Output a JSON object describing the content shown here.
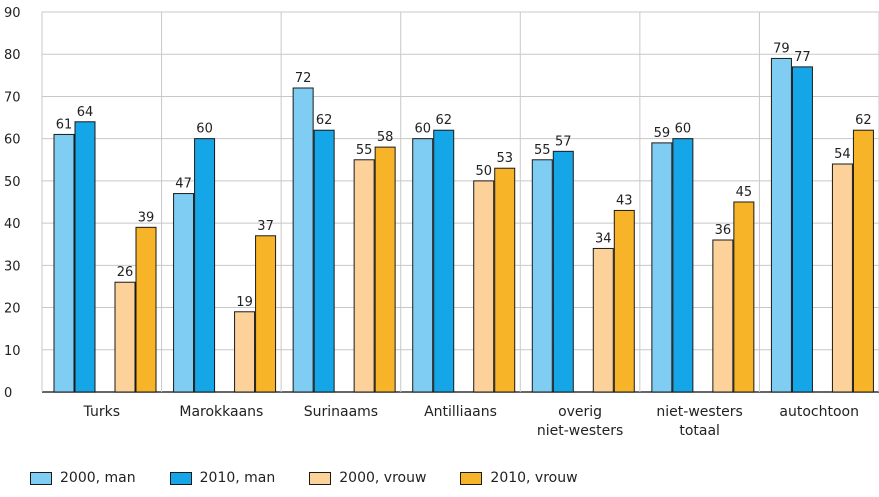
{
  "chart_data": {
    "type": "bar",
    "categories": [
      [
        "Turks"
      ],
      [
        "Marokkaans"
      ],
      [
        "Surinaams"
      ],
      [
        "Antilliaans"
      ],
      [
        "overig",
        "niet-westers"
      ],
      [
        "niet-westers",
        "totaal"
      ],
      [
        "autochtoon"
      ]
    ],
    "series": [
      {
        "name": "2000, man",
        "color": "#7fcdf2",
        "values": [
          61,
          47,
          72,
          60,
          55,
          59,
          79
        ]
      },
      {
        "name": "2010, man",
        "color": "#14a6e6",
        "values": [
          64,
          60,
          62,
          62,
          57,
          60,
          77
        ]
      },
      {
        "name": "2000, vrouw",
        "color": "#fcd29a",
        "values": [
          26,
          19,
          55,
          50,
          34,
          36,
          54
        ]
      },
      {
        "name": "2010, vrouw",
        "color": "#f7b428",
        "values": [
          39,
          37,
          58,
          53,
          43,
          45,
          62
        ]
      }
    ],
    "ylim": [
      0,
      90
    ],
    "yticks": [
      0,
      10,
      20,
      30,
      40,
      50,
      60,
      70,
      80,
      90
    ],
    "grid": true,
    "legend_position": "bottom-left"
  }
}
